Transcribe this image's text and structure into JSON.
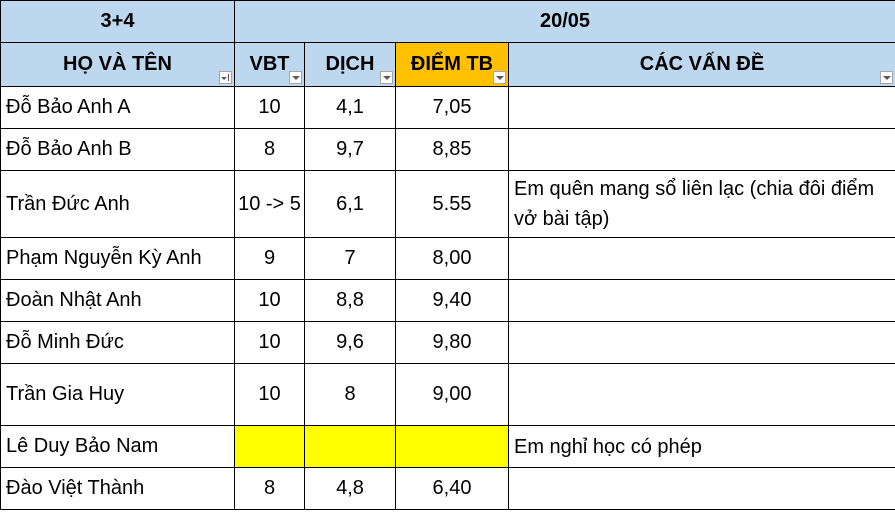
{
  "header": {
    "group_label": "3+4",
    "date_label": "20/05",
    "columns": {
      "name": "HỌ VÀ TÊN",
      "vbt": "VBT",
      "dich": "DỊCH",
      "diem_tb": "ĐIỂM TB",
      "issues": "CÁC VẤN ĐỀ"
    }
  },
  "rows": [
    {
      "name": "Đỗ Bảo Anh A",
      "vbt": "10",
      "dich": "4,1",
      "diem_tb": "7,05",
      "issue": ""
    },
    {
      "name": "Đỗ Bảo Anh B",
      "vbt": "8",
      "dich": "9,7",
      "diem_tb": "8,85",
      "issue": ""
    },
    {
      "name": "Trần Đức Anh",
      "vbt": "10 -> 5",
      "dich": "6,1",
      "diem_tb": "5.55",
      "issue": "Em quên mang sổ liên lạc (chia đôi điểm vở bài tập)"
    },
    {
      "name": "Phạm Nguyễn Kỳ Anh",
      "vbt": "9",
      "dich": "7",
      "diem_tb": "8,00",
      "issue": ""
    },
    {
      "name": "Đoàn Nhật Anh",
      "vbt": "10",
      "dich": "8,8",
      "diem_tb": "9,40",
      "issue": ""
    },
    {
      "name": "Đỗ Minh Đức",
      "vbt": "10",
      "dich": "9,6",
      "diem_tb": "9,80",
      "issue": ""
    },
    {
      "name": "Trần Gia Huy",
      "vbt": "10",
      "dich": "8",
      "diem_tb": "9,00",
      "issue": ""
    },
    {
      "name": "Lê Duy Bảo Nam",
      "vbt": "",
      "dich": "",
      "diem_tb": "",
      "issue": "Em nghỉ học có phép"
    },
    {
      "name": "Đào Việt Thành",
      "vbt": "8",
      "dich": "4,8",
      "diem_tb": "6,40",
      "issue": ""
    }
  ],
  "colors": {
    "header_fill": "#bdd7ee",
    "sorted_header_fill": "#ffc000",
    "highlight_fill": "#ffff00"
  }
}
